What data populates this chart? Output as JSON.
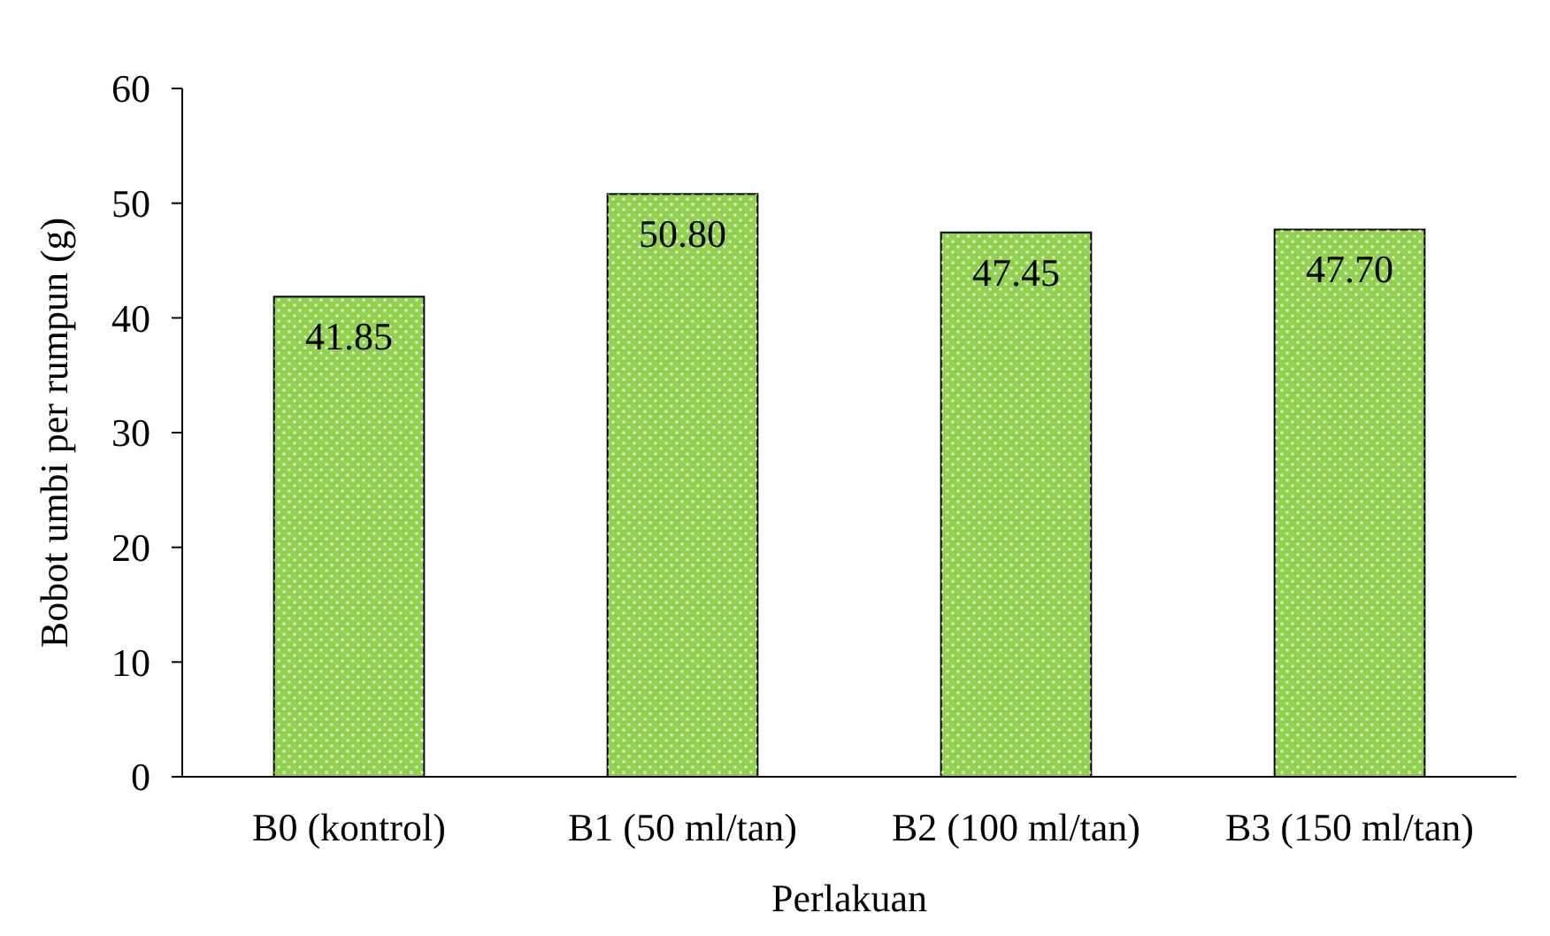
{
  "chart_data": {
    "type": "bar",
    "xlabel": "Perlakuan",
    "ylabel": "Bobot umbi per rumpun (g)",
    "categories": [
      "B0 (kontrol)",
      "B1 (50 ml/tan)",
      "B2 (100 ml/tan)",
      "B3 (150 ml/tan)"
    ],
    "values": [
      41.85,
      50.8,
      47.45,
      47.7
    ],
    "value_labels": [
      "41.85",
      "50.80",
      "47.45",
      "47.70"
    ],
    "color": "#92d050",
    "ylim": [
      0,
      60
    ],
    "yticks": [
      0,
      10,
      20,
      30,
      40,
      50,
      60
    ],
    "grid": false
  }
}
